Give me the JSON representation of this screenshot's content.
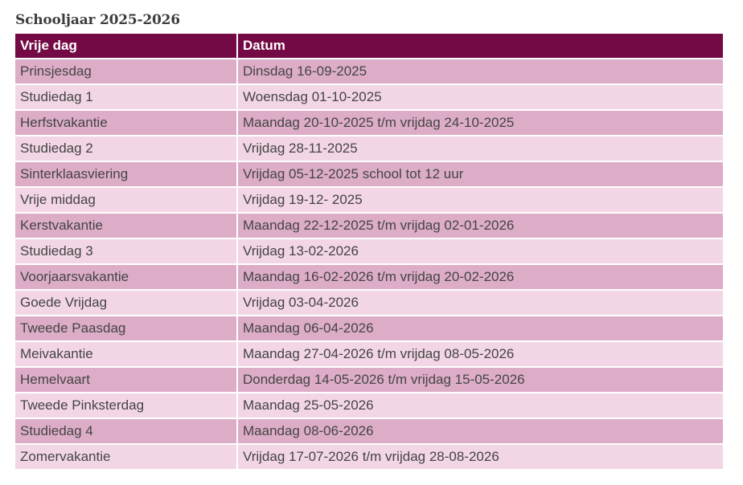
{
  "title": "Schooljaar 2025-2026",
  "table": {
    "headers": [
      "Vrije dag",
      "Datum"
    ],
    "rows": [
      [
        "Prinsjesdag",
        "Dinsdag 16-09-2025"
      ],
      [
        "Studiedag 1",
        "Woensdag 01-10-2025"
      ],
      [
        "Herfstvakantie",
        "Maandag 20-10-2025 t/m vrijdag 24-10-2025"
      ],
      [
        "Studiedag 2",
        "Vrijdag 28-11-2025"
      ],
      [
        "Sinterklaasviering",
        "Vrijdag 05-12-2025 school tot 12 uur"
      ],
      [
        "Vrije middag",
        "Vrijdag 19-12- 2025"
      ],
      [
        "Kerstvakantie",
        "Maandag 22-12-2025 t/m vrijdag 02-01-2026"
      ],
      [
        "Studiedag 3",
        "Vrijdag 13-02-2026"
      ],
      [
        "Voorjaarsvakantie",
        "Maandag 16-02-2026 t/m vrijdag 20-02-2026"
      ],
      [
        "Goede Vrijdag",
        "Vrijdag 03-04-2026"
      ],
      [
        "Tweede Paasdag",
        "Maandag 06-04-2026"
      ],
      [
        "Meivakantie",
        "Maandag 27-04-2026 t/m vrijdag 08-05-2026"
      ],
      [
        "Hemelvaart",
        "Donderdag 14-05-2026 t/m vrijdag 15-05-2026"
      ],
      [
        "Tweede Pinksterdag",
        "Maandag 25-05-2026"
      ],
      [
        "Studiedag 4",
        "Maandag 08-06-2026"
      ],
      [
        "Zomervakantie",
        "Vrijdag 17-07-2026 t/m vrijdag 28-08-2026"
      ]
    ]
  },
  "colors": {
    "header_bg": "#740a45",
    "row_dark": "#ddadc8",
    "row_light": "#f3d6e6"
  }
}
